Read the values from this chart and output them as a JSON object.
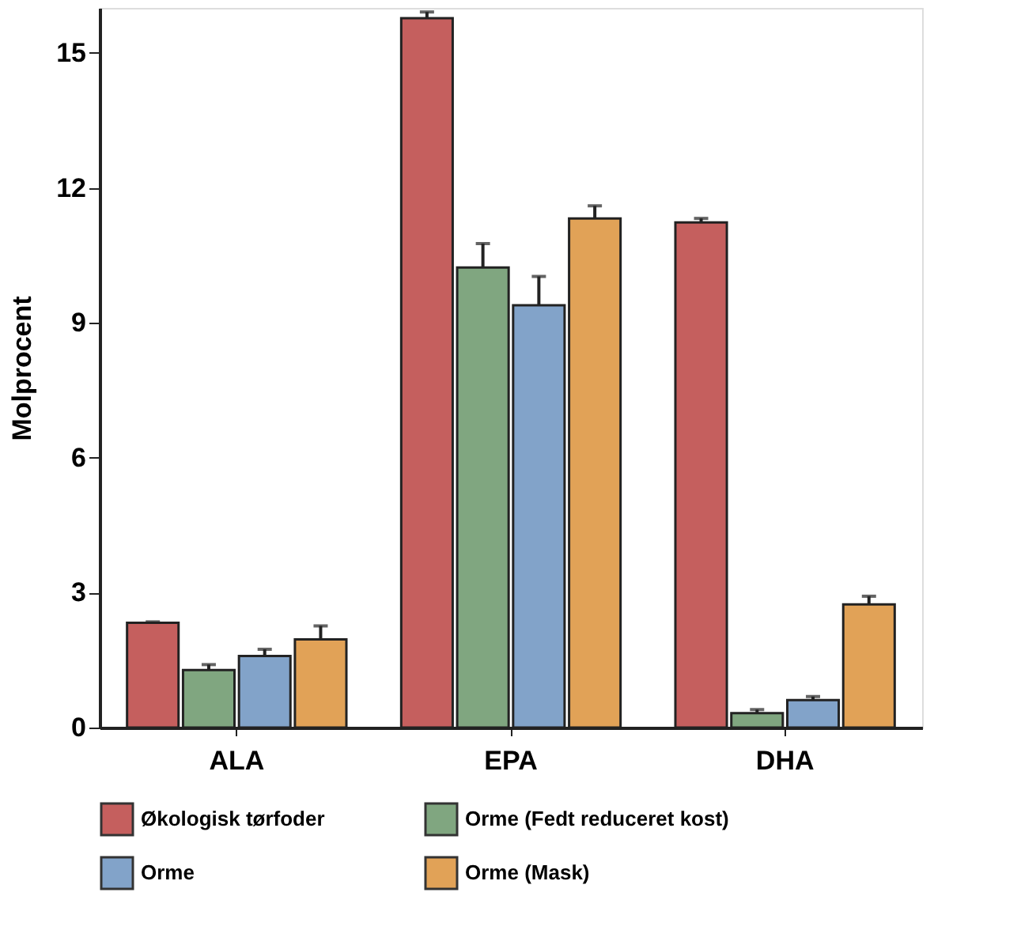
{
  "chart_data": {
    "type": "bar",
    "ylabel": "Molprocent",
    "categories": [
      "ALA",
      "EPA",
      "DHA"
    ],
    "series": [
      {
        "name": "Økologisk tørfoder",
        "color": "#c55f5e",
        "values": [
          2.33,
          15.77,
          11.23
        ],
        "errors": [
          [
            2.33,
            2.35
          ],
          [
            15.77,
            15.91
          ],
          [
            11.23,
            11.32
          ]
        ]
      },
      {
        "name": "Orme (Fedt reduceret kost)",
        "color": "#80a680",
        "values": [
          1.28,
          10.23,
          0.32
        ],
        "errors": [
          [
            1.28,
            1.4
          ],
          [
            10.23,
            10.76
          ],
          [
            0.32,
            0.4
          ]
        ]
      },
      {
        "name": "Orme",
        "color": "#82a3c9",
        "values": [
          1.59,
          9.39,
          0.61
        ],
        "errors": [
          [
            1.59,
            1.74
          ],
          [
            9.39,
            10.03
          ],
          [
            0.61,
            0.69
          ]
        ]
      },
      {
        "name": "Orme (Mask)",
        "color": "#e1a257",
        "values": [
          1.96,
          11.32,
          2.74
        ],
        "errors": [
          [
            1.96,
            2.26
          ],
          [
            11.32,
            11.6
          ],
          [
            2.74,
            2.92
          ]
        ]
      }
    ],
    "ylim": [
      0,
      16
    ],
    "yticks": [
      0,
      3,
      6,
      9,
      12,
      15
    ],
    "grid": false,
    "legend": "bottom"
  }
}
